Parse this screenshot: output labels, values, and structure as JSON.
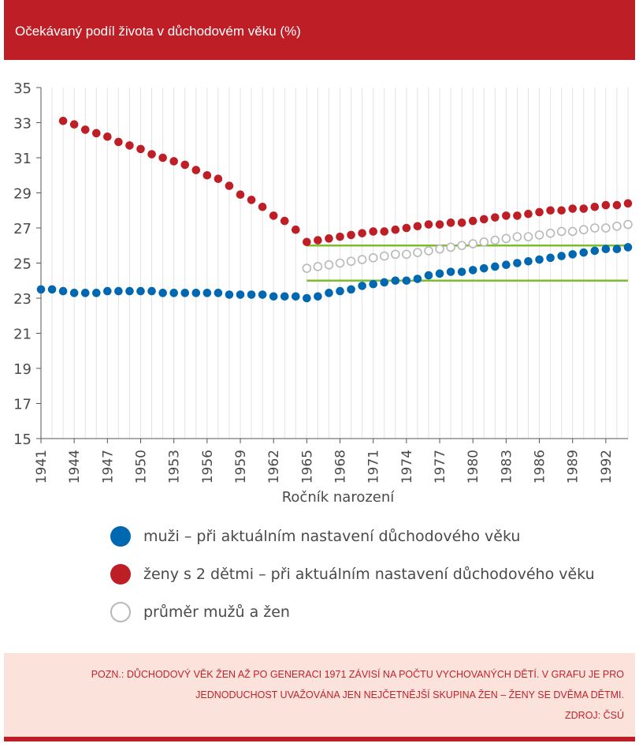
{
  "header": {
    "title": "Očekávaný podíl života v důchodovém věku (%)"
  },
  "chart_data": {
    "type": "scatter",
    "title": "Očekávaný podíl života v důchodovém věku (%)",
    "xlabel": "Ročník narození",
    "ylabel": "",
    "xlim": [
      1941,
      1994
    ],
    "ylim": [
      15,
      35
    ],
    "y_ticks": [
      15,
      17,
      19,
      21,
      23,
      25,
      27,
      29,
      31,
      33,
      35
    ],
    "x_ticks": [
      1941,
      1944,
      1947,
      1950,
      1953,
      1956,
      1959,
      1962,
      1965,
      1968,
      1971,
      1974,
      1977,
      1980,
      1983,
      1986,
      1989,
      1992
    ],
    "grid": "vertical",
    "series": [
      {
        "name": "muži – při aktuálním nastavení důchodového věku",
        "color": "#0067b1",
        "marker": "filled",
        "x": [
          1941,
          1942,
          1943,
          1944,
          1945,
          1946,
          1947,
          1948,
          1949,
          1950,
          1951,
          1952,
          1953,
          1954,
          1955,
          1956,
          1957,
          1958,
          1959,
          1960,
          1961,
          1962,
          1963,
          1964,
          1965,
          1966,
          1967,
          1968,
          1969,
          1970,
          1971,
          1972,
          1973,
          1974,
          1975,
          1976,
          1977,
          1978,
          1979,
          1980,
          1981,
          1982,
          1983,
          1984,
          1985,
          1986,
          1987,
          1988,
          1989,
          1990,
          1991,
          1992,
          1993,
          1994
        ],
        "values": [
          23.5,
          23.5,
          23.4,
          23.3,
          23.3,
          23.3,
          23.4,
          23.4,
          23.4,
          23.4,
          23.4,
          23.3,
          23.3,
          23.3,
          23.3,
          23.3,
          23.3,
          23.2,
          23.2,
          23.2,
          23.2,
          23.1,
          23.1,
          23.1,
          23.0,
          23.1,
          23.3,
          23.4,
          23.5,
          23.7,
          23.8,
          23.9,
          24.0,
          24.0,
          24.1,
          24.3,
          24.4,
          24.5,
          24.5,
          24.6,
          24.7,
          24.8,
          24.9,
          25.0,
          25.1,
          25.2,
          25.3,
          25.4,
          25.5,
          25.6,
          25.7,
          25.8,
          25.8,
          25.9
        ]
      },
      {
        "name": "ženy s 2 dětmi – při aktuálním nastavení důchodového věku",
        "color": "#be1e26",
        "marker": "filled",
        "x": [
          1943,
          1944,
          1945,
          1946,
          1947,
          1948,
          1949,
          1950,
          1951,
          1952,
          1953,
          1954,
          1955,
          1956,
          1957,
          1958,
          1959,
          1960,
          1961,
          1962,
          1963,
          1964,
          1965,
          1966,
          1967,
          1968,
          1969,
          1970,
          1971,
          1972,
          1973,
          1974,
          1975,
          1976,
          1977,
          1978,
          1979,
          1980,
          1981,
          1982,
          1983,
          1984,
          1985,
          1986,
          1987,
          1988,
          1989,
          1990,
          1991,
          1992,
          1993,
          1994
        ],
        "values": [
          33.1,
          32.9,
          32.6,
          32.4,
          32.2,
          31.9,
          31.7,
          31.5,
          31.2,
          31.0,
          30.8,
          30.6,
          30.3,
          30.0,
          29.8,
          29.4,
          28.9,
          28.6,
          28.2,
          27.7,
          27.4,
          26.9,
          26.2,
          26.3,
          26.4,
          26.5,
          26.6,
          26.7,
          26.8,
          26.8,
          26.9,
          27.0,
          27.1,
          27.2,
          27.2,
          27.3,
          27.3,
          27.4,
          27.5,
          27.6,
          27.7,
          27.7,
          27.8,
          27.9,
          28.0,
          28.0,
          28.1,
          28.1,
          28.2,
          28.3,
          28.3,
          28.4
        ]
      },
      {
        "name": "průměr mužů a žen",
        "color": "#b8b8b8",
        "marker": "hollow",
        "x": [
          1965,
          1966,
          1967,
          1968,
          1969,
          1970,
          1971,
          1972,
          1973,
          1974,
          1975,
          1976,
          1977,
          1978,
          1979,
          1980,
          1981,
          1982,
          1983,
          1984,
          1985,
          1986,
          1987,
          1988,
          1989,
          1990,
          1991,
          1992,
          1993,
          1994
        ],
        "values": [
          24.7,
          24.8,
          24.9,
          25.0,
          25.1,
          25.2,
          25.3,
          25.4,
          25.5,
          25.5,
          25.6,
          25.7,
          25.8,
          25.9,
          26.0,
          26.1,
          26.2,
          26.3,
          26.4,
          26.5,
          26.5,
          26.6,
          26.7,
          26.8,
          26.8,
          26.9,
          27.0,
          27.0,
          27.1,
          27.2
        ]
      }
    ],
    "reference_lines": [
      {
        "color": "#7dbe2c",
        "x": [
          1965,
          1994
        ],
        "y": 26.0
      },
      {
        "color": "#7dbe2c",
        "x": [
          1965,
          1994
        ],
        "y": 24.0
      }
    ]
  },
  "legend": {
    "items": [
      {
        "label": "muži – při aktuálním nastavení důchodového věku",
        "color": "#0067b1",
        "style": "filled"
      },
      {
        "label": "ženy s 2 dětmi – při aktuálním nastavení důchodového věku",
        "color": "#be1e26",
        "style": "filled"
      },
      {
        "label": "průměr mužů a žen",
        "color": "#b8b8b8",
        "style": "hollow"
      }
    ]
  },
  "note": {
    "line1": "POZN.: DŮCHODOVÝ VĚK ŽEN AŽ PO GENERACI 1971 ZÁVISÍ NA POČTU VYCHOVANÝCH DĚTÍ. V GRAFU JE PRO",
    "line2": "JEDNODUCHOST UVAŽOVÁNA JEN NEJČETNĚJŠÍ SKUPINA ŽEN – ŽENY SE DVĚMA DĚTMI.",
    "source": "ZDROJ: ČSÚ"
  }
}
